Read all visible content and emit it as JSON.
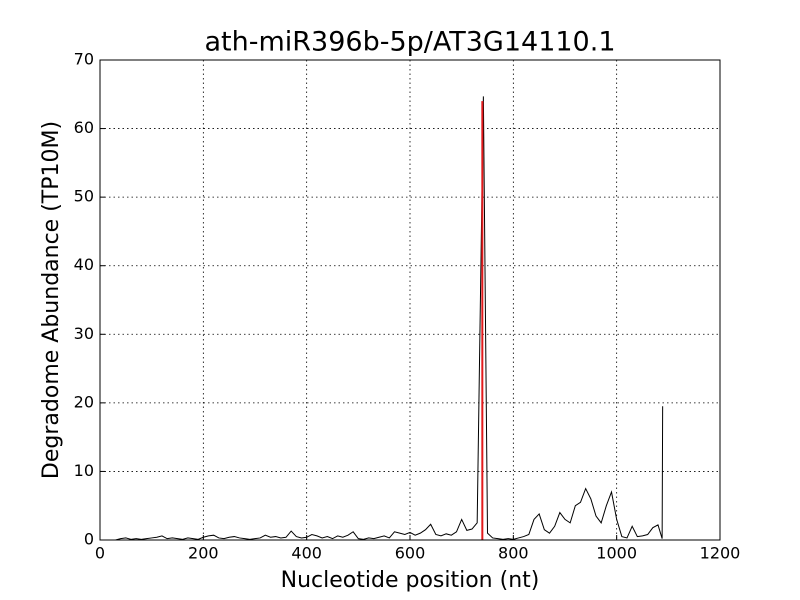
{
  "chart_data": {
    "type": "line",
    "title": "ath-miR396b-5p/AT3G14110.1",
    "xlabel": "Nucleotide position (nt)",
    "ylabel": "Degradome Abundance (TP10M)",
    "xlim": [
      0,
      1200
    ],
    "xticks": [
      0,
      200,
      400,
      600,
      800,
      1000,
      1200
    ],
    "ylim": [
      0,
      70
    ],
    "yticks": [
      0,
      10,
      20,
      30,
      40,
      50,
      60,
      70
    ],
    "grid": true,
    "series": [
      {
        "color": "#000000",
        "x": [
          0,
          10,
          20,
          30,
          40,
          50,
          60,
          70,
          80,
          90,
          100,
          110,
          120,
          130,
          140,
          150,
          160,
          170,
          180,
          190,
          200,
          210,
          220,
          230,
          240,
          250,
          260,
          270,
          280,
          290,
          300,
          310,
          320,
          330,
          340,
          350,
          360,
          370,
          380,
          390,
          400,
          410,
          420,
          430,
          440,
          450,
          460,
          470,
          480,
          490,
          500,
          510,
          520,
          530,
          540,
          550,
          560,
          570,
          580,
          590,
          600,
          610,
          620,
          630,
          640,
          650,
          660,
          670,
          680,
          690,
          700,
          710,
          720,
          730,
          742,
          750,
          760,
          770,
          780,
          790,
          800,
          810,
          820,
          830,
          840,
          850,
          860,
          870,
          880,
          890,
          900,
          910,
          920,
          930,
          940,
          950,
          960,
          970,
          980,
          990,
          1000,
          1010,
          1020,
          1030,
          1040,
          1050,
          1060,
          1070,
          1080,
          1088,
          1089
        ],
        "values": [
          0,
          0,
          0,
          0,
          0.2,
          0.3,
          0.1,
          0.2,
          0.1,
          0.2,
          0.3,
          0.4,
          0.6,
          0.2,
          0.3,
          0.2,
          0.1,
          0.3,
          0.2,
          0.1,
          0.4,
          0.6,
          0.7,
          0.3,
          0.2,
          0.4,
          0.5,
          0.3,
          0.2,
          0.1,
          0.2,
          0.3,
          0.7,
          0.4,
          0.5,
          0.3,
          0.4,
          1.3,
          0.5,
          0.3,
          0.4,
          0.8,
          0.6,
          0.3,
          0.5,
          0.2,
          0.6,
          0.4,
          0.7,
          1.2,
          0.2,
          0.1,
          0.3,
          0.2,
          0.4,
          0.6,
          0.3,
          1.2,
          1.0,
          0.8,
          1.1,
          0.7,
          1.0,
          1.5,
          2.3,
          0.8,
          0.6,
          0.9,
          0.7,
          1.2,
          3.0,
          1.4,
          1.6,
          2.5,
          64.7,
          1.0,
          0.3,
          0.2,
          0.1,
          0.2,
          0.1,
          0.3,
          0.5,
          0.8,
          3.0,
          3.8,
          1.5,
          1.0,
          2.0,
          4.0,
          3.0,
          2.5,
          5.0,
          5.5,
          7.5,
          6.0,
          3.5,
          2.5,
          5.0,
          7.0,
          3.0,
          0.5,
          0.3,
          2.0,
          0.5,
          0.6,
          0.8,
          1.8,
          2.2,
          0.2,
          19.5
        ]
      },
      {
        "color": "#e31a1c",
        "x": [
          740,
          740
        ],
        "values": [
          0,
          64
        ]
      }
    ]
  }
}
